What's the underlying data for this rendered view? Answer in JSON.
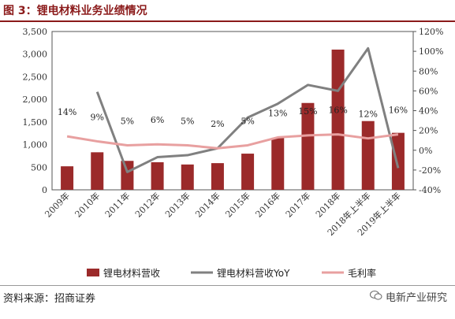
{
  "figure": {
    "title": "图 3：锂电材料业务业绩情况",
    "source": "资料来源：招商证券",
    "watermark": "电新产业研究"
  },
  "chart_data": {
    "type": "bar",
    "categories": [
      "2009年",
      "2010年",
      "2011年",
      "2012年",
      "2013年",
      "2014年",
      "2015年",
      "2016年",
      "2017年",
      "2018年",
      "2018年上半年",
      "2019年上半年"
    ],
    "series": [
      {
        "name": "锂电材料营收",
        "type": "bar",
        "axis": "left",
        "color": "#9b2a2a",
        "values": [
          520,
          830,
          640,
          610,
          560,
          590,
          800,
          1150,
          1920,
          3100,
          1520,
          1260
        ]
      },
      {
        "name": "锂电材料营收YoY",
        "type": "line",
        "axis": "right",
        "color": "#808080",
        "values": [
          null,
          59,
          -22,
          -7,
          -5,
          2,
          33,
          47,
          66,
          60,
          103,
          -18
        ]
      },
      {
        "name": "毛利率",
        "type": "line",
        "axis": "right",
        "color": "#e8a0a0",
        "values": [
          14,
          9,
          5,
          6,
          5,
          2,
          5,
          13,
          15,
          16,
          12,
          16
        ]
      }
    ],
    "data_labels": [
      "14%",
      "9%",
      "5%",
      "6%",
      "5%",
      "2%",
      "5%",
      "13%",
      "15%",
      "16%",
      "12%",
      "16%"
    ],
    "y_left": {
      "range": [
        0,
        3500
      ],
      "ticks": [
        "0",
        "500",
        "1,000",
        "1,500",
        "2,000",
        "2,500",
        "3,000",
        "3,500"
      ]
    },
    "y_right": {
      "range": [
        -40,
        120
      ],
      "ticks": [
        "-40%",
        "-20%",
        "0%",
        "20%",
        "40%",
        "60%",
        "80%",
        "100%",
        "120%"
      ]
    },
    "legend_position": "bottom",
    "grid": false
  }
}
